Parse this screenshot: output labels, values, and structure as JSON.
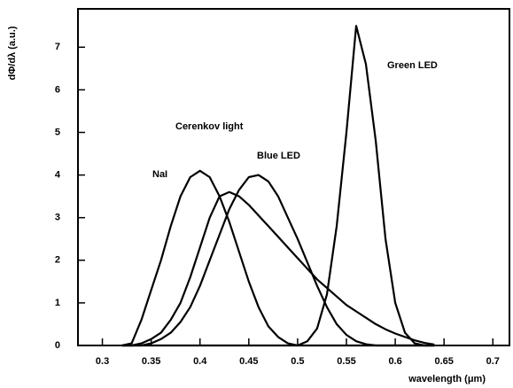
{
  "chart_data": {
    "type": "line",
    "x_label": "wavelength (μm)",
    "y_label": "dΦ/dλ (a.u.)",
    "x": [
      0.32,
      0.33,
      0.34,
      0.35,
      0.36,
      0.37,
      0.38,
      0.39,
      0.4,
      0.41,
      0.42,
      0.43,
      0.44,
      0.45,
      0.46,
      0.47,
      0.48,
      0.49,
      0.5,
      0.51,
      0.52,
      0.53,
      0.54,
      0.55,
      0.56,
      0.57,
      0.58,
      0.59,
      0.6,
      0.61,
      0.62,
      0.63,
      0.64
    ],
    "series": [
      {
        "name": "NaI",
        "color": "#000000",
        "values": [
          0,
          0.05,
          0.6,
          1.3,
          2.0,
          2.8,
          3.5,
          3.95,
          4.1,
          3.95,
          3.5,
          2.9,
          2.2,
          1.5,
          0.9,
          0.45,
          0.2,
          0.05,
          0,
          0,
          0,
          0,
          0,
          0,
          0,
          0,
          0,
          0,
          0,
          0,
          0,
          0,
          0
        ]
      },
      {
        "name": "Cerenkov light",
        "color": "#000000",
        "values": [
          0,
          0,
          0.05,
          0.15,
          0.3,
          0.6,
          1.0,
          1.6,
          2.3,
          3.0,
          3.5,
          3.6,
          3.5,
          3.3,
          3.05,
          2.8,
          2.55,
          2.3,
          2.05,
          1.8,
          1.55,
          1.35,
          1.15,
          0.95,
          0.8,
          0.65,
          0.5,
          0.38,
          0.28,
          0.2,
          0.12,
          0.06,
          0.02
        ]
      },
      {
        "name": "Blue LED",
        "color": "#000000",
        "values": [
          0,
          0,
          0,
          0.05,
          0.15,
          0.3,
          0.55,
          0.9,
          1.4,
          2.0,
          2.6,
          3.2,
          3.65,
          3.95,
          4.0,
          3.85,
          3.5,
          3.0,
          2.5,
          1.95,
          1.4,
          0.9,
          0.5,
          0.25,
          0.1,
          0.03,
          0,
          0,
          0,
          0,
          0,
          0,
          0
        ]
      },
      {
        "name": "Green LED",
        "color": "#000000",
        "values": [
          0,
          0,
          0,
          0,
          0,
          0,
          0,
          0,
          0,
          0,
          0,
          0,
          0,
          0,
          0,
          0,
          0,
          0,
          0,
          0.1,
          0.4,
          1.2,
          2.8,
          5.0,
          7.5,
          6.6,
          4.8,
          2.5,
          1.0,
          0.3,
          0.05,
          0,
          0
        ]
      }
    ],
    "xlim": [
      0.275,
      0.717
    ],
    "ylim": [
      0,
      7.9
    ],
    "xticks": [
      0.3,
      0.35,
      0.4,
      0.45,
      0.5,
      0.55,
      0.6,
      0.65,
      0.7
    ],
    "yticks": [
      0,
      1,
      2,
      3,
      4,
      5,
      6,
      7
    ]
  }
}
